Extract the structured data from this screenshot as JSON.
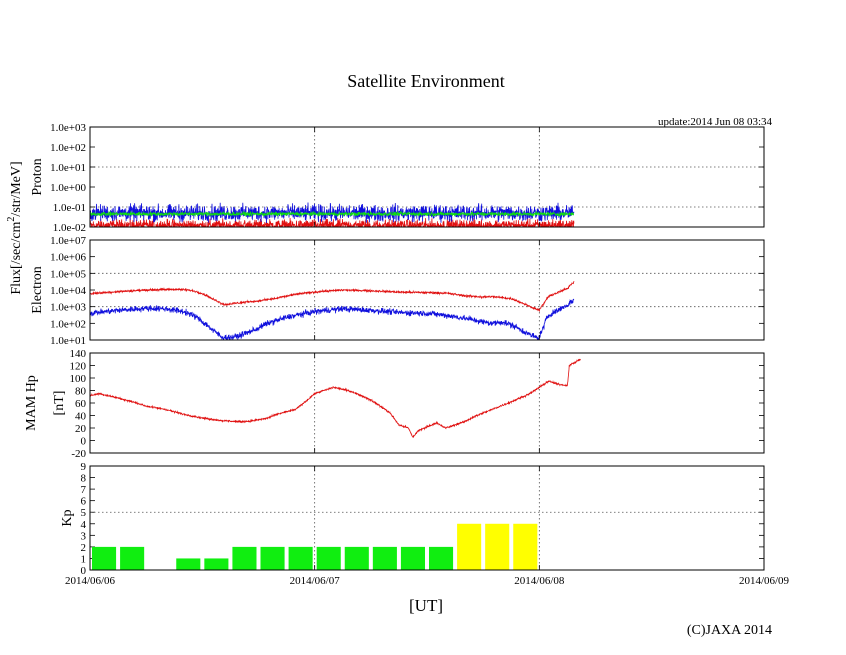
{
  "chart_data": {
    "title": "Satellite Environment",
    "update_label": "update:2014 Jun 08 03:34",
    "copyright": "(C)JAXA 2014",
    "xlabel": "[UT]",
    "xlim": [
      "2014/06/06",
      "2014/06/09"
    ],
    "x_ticks": [
      "2014/06/06",
      "2014/06/07",
      "2014/06/08",
      "2014/06/09"
    ],
    "flux_label_parts": [
      "Flux[/sec/cm",
      "2",
      "/str/MeV]"
    ],
    "panels": [
      {
        "type": "line",
        "name": "proton",
        "ylabel": "Proton",
        "yscale": "log",
        "ylim": [
          0.01,
          1000
        ],
        "y_ticks": [
          "1.0e+03",
          "1.0e+02",
          "1.0e+01",
          "1.0e+00",
          "1.0e-01",
          "1.0e-02"
        ],
        "series": [
          {
            "color": "#e01010",
            "x_hours": [
              0,
              51.7
            ],
            "values": [
              0.012,
              0.012
            ],
            "noise_decades": 0.25
          },
          {
            "color": "#1010dd",
            "x_hours": [
              0,
              51.7
            ],
            "values": [
              0.05,
              0.05
            ],
            "noise_decades": 0.35
          },
          {
            "color": "#10dd10",
            "x_hours": [
              0,
              51.7
            ],
            "values": [
              0.045,
              0.045
            ],
            "noise_decades": 0.08
          }
        ]
      },
      {
        "type": "line",
        "name": "electron",
        "ylabel": "Electron",
        "yscale": "log",
        "ylim": [
          10,
          10000000
        ],
        "y_ticks": [
          "1.0e+07",
          "1.0e+06",
          "1.0e+05",
          "1.0e+04",
          "1.0e+03",
          "1.0e+02",
          "1.0e+01"
        ],
        "series": [
          {
            "color": "#e01010",
            "x_hours": [
              0,
              3,
              6,
              9,
              10,
              11,
              12,
              13,
              14,
              14.5,
              15,
              16,
              17,
              18,
              20,
              22,
              24,
              27,
              30,
              33,
              36,
              38,
              40,
              42,
              43,
              44,
              45,
              46,
              47,
              48,
              48.5,
              49,
              50,
              51,
              51.7
            ],
            "values": [
              6000,
              8000,
              10000,
              11000,
              10500,
              9000,
              6000,
              3000,
              1600,
              1300,
              1500,
              1700,
              2000,
              2200,
              3200,
              5500,
              7500,
              10000,
              9000,
              7500,
              7000,
              6500,
              4500,
              3800,
              4000,
              3500,
              3000,
              1800,
              1000,
              600,
              1500,
              4000,
              7000,
              12000,
              30000
            ],
            "noise_decades": 0.05
          },
          {
            "color": "#1010dd",
            "x_hours": [
              0,
              3,
              6,
              8,
              10,
              11,
              12,
              13,
              14,
              15,
              16,
              17,
              18,
              20,
              22,
              24,
              27,
              30,
              33,
              36,
              38,
              40,
              42,
              43,
              44,
              45,
              46,
              47,
              48,
              48.5,
              49,
              50,
              51,
              51.7
            ],
            "values": [
              400,
              600,
              800,
              750,
              500,
              300,
              120,
              40,
              15,
              14,
              18,
              30,
              50,
              150,
              300,
              500,
              750,
              600,
              450,
              400,
              300,
              200,
              120,
              100,
              120,
              80,
              40,
              20,
              12,
              60,
              300,
              600,
              1200,
              2500
            ],
            "noise_decades": 0.15
          }
        ]
      },
      {
        "type": "line",
        "name": "mam-hp",
        "ylabel": "MAM Hp",
        "ylabel2": "[nT]",
        "ylim": [
          -20,
          140
        ],
        "y_ticks": [
          "140",
          "120",
          "100",
          "80",
          "60",
          "40",
          "20",
          "0",
          "-20"
        ],
        "series": [
          {
            "color": "#e01010",
            "x_hours": [
              0,
              1,
              3,
              5,
              6,
              8,
              10,
              12,
              14,
              16,
              17,
              18,
              19,
              20,
              21,
              22,
              23,
              24,
              25,
              26,
              27,
              28,
              30,
              32,
              33,
              34,
              34.5,
              35,
              36,
              37,
              38,
              39,
              40,
              41,
              43,
              45,
              47,
              48,
              49,
              50,
              51,
              51.2,
              52.4
            ],
            "values": [
              72,
              75,
              68,
              60,
              55,
              50,
              42,
              36,
              32,
              30,
              31,
              33,
              36,
              42,
              46,
              50,
              62,
              75,
              80,
              85,
              82,
              78,
              65,
              45,
              25,
              20,
              5,
              15,
              22,
              28,
              20,
              25,
              30,
              38,
              50,
              62,
              75,
              85,
              95,
              90,
              88,
              120,
              130
            ],
            "noise_units": 1.2
          }
        ]
      },
      {
        "type": "bar",
        "name": "kp",
        "ylabel": "Kp",
        "ylim": [
          0,
          9
        ],
        "y_ticks": [
          "9",
          "8",
          "7",
          "6",
          "5",
          "4",
          "3",
          "2",
          "1",
          "0"
        ],
        "dashed_level": 5,
        "bar_hours": 3,
        "values": [
          2,
          2,
          0,
          1,
          1,
          2,
          2,
          2,
          2,
          2,
          2,
          2,
          2,
          4,
          4,
          4
        ],
        "colors": [
          "#10ee10",
          "#10ee10",
          "#10ee10",
          "#10ee10",
          "#10ee10",
          "#10ee10",
          "#10ee10",
          "#10ee10",
          "#10ee10",
          "#10ee10",
          "#10ee10",
          "#10ee10",
          "#10ee10",
          "#ffff00",
          "#ffff00",
          "#ffff00"
        ]
      }
    ]
  }
}
